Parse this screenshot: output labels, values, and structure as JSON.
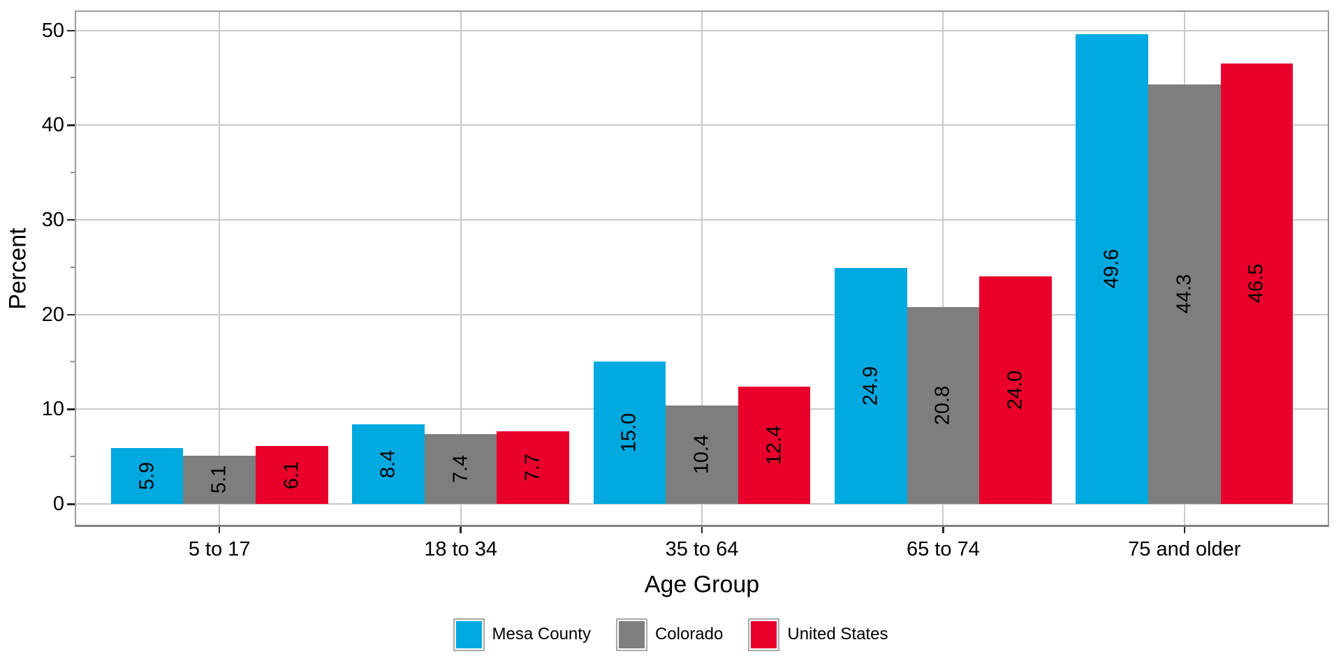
{
  "chart_data": {
    "type": "bar",
    "title": "",
    "xlabel": "Age Group",
    "ylabel": "Percent",
    "categories": [
      "5 to 17",
      "18 to 34",
      "35 to 64",
      "65 to 74",
      "75 and older"
    ],
    "series": [
      {
        "name": "Mesa County",
        "color": "#00A9E0",
        "values": [
          5.9,
          8.4,
          15.0,
          24.9,
          49.6
        ]
      },
      {
        "name": "Colorado",
        "color": "#7E7E7E",
        "values": [
          5.1,
          7.4,
          10.4,
          20.8,
          44.3
        ]
      },
      {
        "name": "United States",
        "color": "#E9002B",
        "values": [
          6.1,
          7.7,
          12.4,
          24.0,
          46.5
        ]
      }
    ],
    "value_label_decimals": 1,
    "value_labels": [
      [
        "5.9",
        "8.4",
        "15.0",
        "24.9",
        "49.6"
      ],
      [
        "5.1",
        "7.4",
        "10.4",
        "20.8",
        "44.3"
      ],
      [
        "6.1",
        "7.7",
        "12.4",
        "24.0",
        "46.5"
      ]
    ],
    "y_axis": {
      "min": 0,
      "max": 52.5,
      "major_ticks": [
        0,
        10,
        20,
        30,
        40,
        50
      ],
      "major_tick_labels": [
        "0",
        "10",
        "20",
        "30",
        "40",
        "50"
      ],
      "minor_ticks": [
        5,
        15,
        25,
        35,
        45
      ]
    },
    "grid": {
      "horizontal_major": true,
      "vertical_at_category_centers": true,
      "minor_gridlines": false
    },
    "legend_position": "bottom",
    "bar_value_labels": {
      "rotation_deg": -90,
      "position": "center-of-bar",
      "color": "#000000"
    }
  },
  "styles": {
    "grid_color": "#C9C9C9",
    "panel_border_color": "#9A9A9A",
    "axis_line_color": "#7F7F7F",
    "major_tick_color": "#262626",
    "minor_tick_color": "#8F8F8F",
    "text_color": "#000000"
  }
}
